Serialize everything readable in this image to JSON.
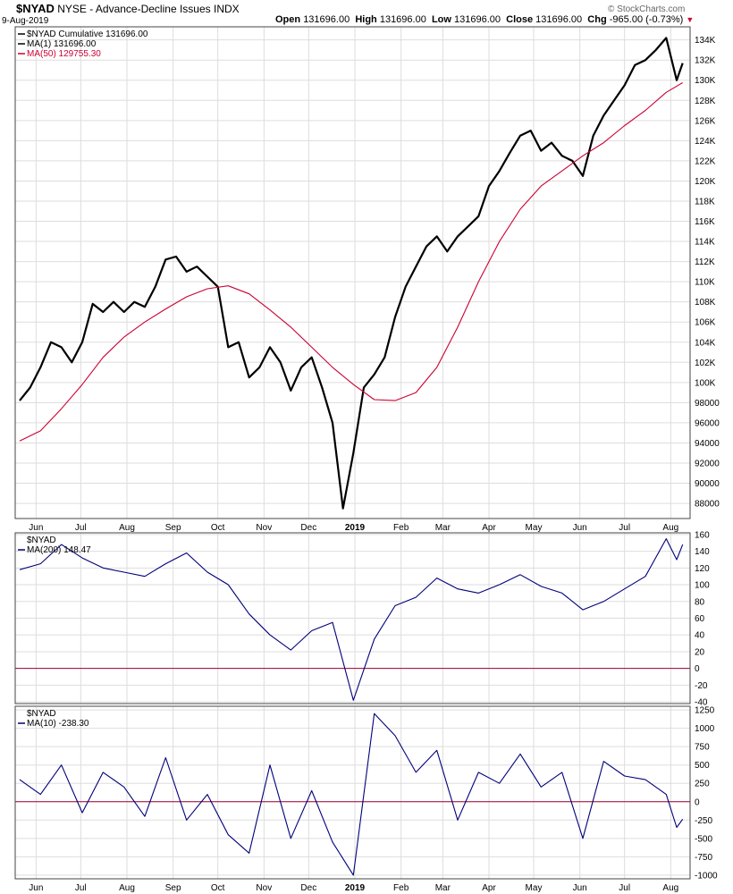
{
  "header": {
    "symbol": "$NYAD",
    "description": "NYSE - Advance-Decline Issues",
    "exchange": "INDX",
    "date": "9-Aug-2019",
    "open_label": "Open",
    "open_value": "131696.00",
    "high_label": "High",
    "high_value": "131696.00",
    "low_label": "Low",
    "low_value": "131696.00",
    "close_label": "Close",
    "close_value": "131696.00",
    "chg_label": "Chg",
    "chg_value": "-965.00 (-0.73%)",
    "watermark": "© StockCharts.com"
  },
  "colors": {
    "price": "#000000",
    "ma50": "#cc0033",
    "osc": "#00007a",
    "zero": "#a00030",
    "grid": "#dddddd"
  },
  "chart_data": [
    {
      "type": "line",
      "panel": "main",
      "legend": [
        "$NYAD Cumulative 131696.00",
        "MA(1) 131696.00",
        "MA(50) 129755.30"
      ],
      "y_ticks": [
        88000,
        90000,
        92000,
        94000,
        96000,
        98000,
        100000,
        102000,
        104000,
        106000,
        108000,
        110000,
        112000,
        114000,
        116000,
        118000,
        120000,
        122000,
        124000,
        126000,
        128000,
        130000,
        132000,
        134000
      ],
      "y_tick_labels": [
        "88000",
        "90000",
        "92000",
        "94000",
        "96000",
        "98000",
        "100K",
        "102K",
        "104K",
        "106K",
        "108K",
        "110K",
        "112K",
        "114K",
        "116K",
        "118K",
        "120K",
        "122K",
        "124K",
        "126K",
        "128K",
        "130K",
        "132K",
        "134K"
      ],
      "ylim": [
        86500,
        135300
      ],
      "x_ticks": [
        "Jun",
        "Jul",
        "Aug",
        "Sep",
        "Oct",
        "Nov",
        "Dec",
        "2019",
        "Feb",
        "Mar",
        "Apr",
        "May",
        "Jun",
        "Jul",
        "Aug"
      ],
      "series": [
        {
          "name": "$NYAD Cumulative",
          "points": [
            [
              "2018-05-21",
              98200
            ],
            [
              "2018-05-28",
              99500
            ],
            [
              "2018-06-04",
              101500
            ],
            [
              "2018-06-11",
              104000
            ],
            [
              "2018-06-18",
              103500
            ],
            [
              "2018-06-25",
              102000
            ],
            [
              "2018-07-02",
              104000
            ],
            [
              "2018-07-09",
              107800
            ],
            [
              "2018-07-16",
              107000
            ],
            [
              "2018-07-23",
              108000
            ],
            [
              "2018-07-30",
              107000
            ],
            [
              "2018-08-06",
              108000
            ],
            [
              "2018-08-13",
              107500
            ],
            [
              "2018-08-20",
              109500
            ],
            [
              "2018-08-27",
              112200
            ],
            [
              "2018-09-03",
              112500
            ],
            [
              "2018-09-10",
              111000
            ],
            [
              "2018-09-17",
              111500
            ],
            [
              "2018-09-24",
              110500
            ],
            [
              "2018-10-01",
              109500
            ],
            [
              "2018-10-08",
              103500
            ],
            [
              "2018-10-15",
              104000
            ],
            [
              "2018-10-22",
              100500
            ],
            [
              "2018-10-29",
              101500
            ],
            [
              "2018-11-05",
              103500
            ],
            [
              "2018-11-12",
              102000
            ],
            [
              "2018-11-19",
              99200
            ],
            [
              "2018-11-26",
              101500
            ],
            [
              "2018-12-03",
              102500
            ],
            [
              "2018-12-10",
              99500
            ],
            [
              "2018-12-17",
              96000
            ],
            [
              "2018-12-24",
              87500
            ],
            [
              "2018-12-31",
              93000
            ],
            [
              "2019-01-07",
              99500
            ],
            [
              "2019-01-14",
              100800
            ],
            [
              "2019-01-21",
              102500
            ],
            [
              "2019-01-28",
              106500
            ],
            [
              "2019-02-04",
              109500
            ],
            [
              "2019-02-11",
              111500
            ],
            [
              "2019-02-18",
              113500
            ],
            [
              "2019-02-25",
              114500
            ],
            [
              "2019-03-04",
              113000
            ],
            [
              "2019-03-11",
              114500
            ],
            [
              "2019-03-18",
              115500
            ],
            [
              "2019-03-25",
              116500
            ],
            [
              "2019-04-01",
              119500
            ],
            [
              "2019-04-08",
              121000
            ],
            [
              "2019-04-15",
              122800
            ],
            [
              "2019-04-22",
              124500
            ],
            [
              "2019-04-29",
              125000
            ],
            [
              "2019-05-06",
              123000
            ],
            [
              "2019-05-13",
              123800
            ],
            [
              "2019-05-20",
              122500
            ],
            [
              "2019-05-27",
              122000
            ],
            [
              "2019-06-03",
              120500
            ],
            [
              "2019-06-10",
              124500
            ],
            [
              "2019-06-17",
              126500
            ],
            [
              "2019-06-24",
              128000
            ],
            [
              "2019-07-01",
              129500
            ],
            [
              "2019-07-08",
              131500
            ],
            [
              "2019-07-15",
              132000
            ],
            [
              "2019-07-22",
              133000
            ],
            [
              "2019-07-29",
              134200
            ],
            [
              "2019-08-05",
              130000
            ],
            [
              "2019-08-09",
              131696
            ]
          ]
        },
        {
          "name": "MA(50)",
          "points": [
            [
              "2018-05-21",
              94200
            ],
            [
              "2018-06-04",
              95200
            ],
            [
              "2018-06-18",
              97400
            ],
            [
              "2018-07-02",
              99800
            ],
            [
              "2018-07-16",
              102500
            ],
            [
              "2018-07-30",
              104500
            ],
            [
              "2018-08-13",
              106000
            ],
            [
              "2018-08-27",
              107300
            ],
            [
              "2018-09-10",
              108500
            ],
            [
              "2018-09-24",
              109300
            ],
            [
              "2018-10-08",
              109600
            ],
            [
              "2018-10-22",
              108800
            ],
            [
              "2018-11-05",
              107200
            ],
            [
              "2018-11-19",
              105500
            ],
            [
              "2018-12-03",
              103500
            ],
            [
              "2018-12-17",
              101500
            ],
            [
              "2018-12-31",
              99800
            ],
            [
              "2019-01-14",
              98300
            ],
            [
              "2019-01-28",
              98200
            ],
            [
              "2019-02-11",
              99000
            ],
            [
              "2019-02-25",
              101500
            ],
            [
              "2019-03-11",
              105500
            ],
            [
              "2019-03-25",
              110000
            ],
            [
              "2019-04-08",
              114000
            ],
            [
              "2019-04-22",
              117200
            ],
            [
              "2019-05-06",
              119500
            ],
            [
              "2019-05-20",
              121000
            ],
            [
              "2019-06-03",
              122500
            ],
            [
              "2019-06-17",
              123800
            ],
            [
              "2019-07-01",
              125500
            ],
            [
              "2019-07-15",
              127000
            ],
            [
              "2019-07-29",
              128800
            ],
            [
              "2019-08-09",
              129755
            ]
          ]
        }
      ]
    },
    {
      "type": "line",
      "panel": "ma200",
      "legend": [
        "$NYAD",
        "MA(200) 148.47"
      ],
      "y_ticks": [
        -40,
        -20,
        0,
        20,
        40,
        60,
        80,
        100,
        120,
        140,
        160
      ],
      "ylim": [
        -42,
        162
      ],
      "zero_line": 0,
      "series": [
        {
          "name": "MA(200)",
          "points": [
            [
              "2018-05-21",
              118
            ],
            [
              "2018-06-04",
              125
            ],
            [
              "2018-06-18",
              148
            ],
            [
              "2018-07-02",
              132
            ],
            [
              "2018-07-16",
              120
            ],
            [
              "2018-07-30",
              115
            ],
            [
              "2018-08-13",
              110
            ],
            [
              "2018-08-27",
              125
            ],
            [
              "2018-09-10",
              138
            ],
            [
              "2018-09-24",
              115
            ],
            [
              "2018-10-08",
              100
            ],
            [
              "2018-10-22",
              65
            ],
            [
              "2018-11-05",
              40
            ],
            [
              "2018-11-19",
              22
            ],
            [
              "2018-12-03",
              45
            ],
            [
              "2018-12-17",
              55
            ],
            [
              "2018-12-31",
              -38
            ],
            [
              "2019-01-14",
              35
            ],
            [
              "2019-01-28",
              75
            ],
            [
              "2019-02-11",
              85
            ],
            [
              "2019-02-25",
              108
            ],
            [
              "2019-03-11",
              95
            ],
            [
              "2019-03-25",
              90
            ],
            [
              "2019-04-08",
              100
            ],
            [
              "2019-04-22",
              112
            ],
            [
              "2019-05-06",
              98
            ],
            [
              "2019-05-20",
              90
            ],
            [
              "2019-06-03",
              70
            ],
            [
              "2019-06-17",
              80
            ],
            [
              "2019-07-01",
              95
            ],
            [
              "2019-07-15",
              110
            ],
            [
              "2019-07-29",
              155
            ],
            [
              "2019-08-05",
              130
            ],
            [
              "2019-08-09",
              148
            ]
          ]
        }
      ]
    },
    {
      "type": "line",
      "panel": "ma10",
      "legend": [
        "$NYAD",
        "MA(10) -238.30"
      ],
      "y_ticks": [
        -1000,
        -750,
        -500,
        -250,
        0,
        250,
        500,
        750,
        1000,
        1250
      ],
      "ylim": [
        -1050,
        1300
      ],
      "zero_line": 0,
      "series": [
        {
          "name": "MA(10)",
          "points": [
            [
              "2018-05-21",
              300
            ],
            [
              "2018-06-04",
              100
            ],
            [
              "2018-06-18",
              500
            ],
            [
              "2018-07-02",
              -150
            ],
            [
              "2018-07-16",
              400
            ],
            [
              "2018-07-30",
              200
            ],
            [
              "2018-08-13",
              -200
            ],
            [
              "2018-08-27",
              600
            ],
            [
              "2018-09-10",
              -250
            ],
            [
              "2018-09-24",
              100
            ],
            [
              "2018-10-08",
              -450
            ],
            [
              "2018-10-22",
              -700
            ],
            [
              "2018-11-05",
              500
            ],
            [
              "2018-11-19",
              -500
            ],
            [
              "2018-12-03",
              150
            ],
            [
              "2018-12-17",
              -550
            ],
            [
              "2018-12-31",
              -1000
            ],
            [
              "2019-01-14",
              1200
            ],
            [
              "2019-01-28",
              900
            ],
            [
              "2019-02-11",
              400
            ],
            [
              "2019-02-25",
              700
            ],
            [
              "2019-03-11",
              -250
            ],
            [
              "2019-03-25",
              400
            ],
            [
              "2019-04-08",
              250
            ],
            [
              "2019-04-22",
              650
            ],
            [
              "2019-05-06",
              200
            ],
            [
              "2019-05-20",
              400
            ],
            [
              "2019-06-03",
              -500
            ],
            [
              "2019-06-17",
              550
            ],
            [
              "2019-07-01",
              350
            ],
            [
              "2019-07-15",
              300
            ],
            [
              "2019-07-29",
              100
            ],
            [
              "2019-08-05",
              -350
            ],
            [
              "2019-08-09",
              -238
            ]
          ]
        }
      ]
    }
  ]
}
